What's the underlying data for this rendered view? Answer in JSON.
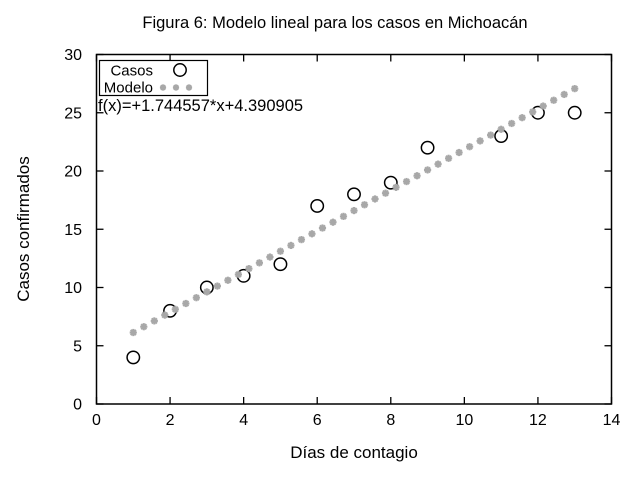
{
  "chart_data": {
    "type": "scatter",
    "title": "Figura 6: Modelo lineal para los casos en Michoacán",
    "xlabel": "Días de contagio",
    "ylabel": "Casos confirmados",
    "xlim": [
      0,
      14
    ],
    "ylim": [
      0,
      30
    ],
    "xticks": [
      0,
      2,
      4,
      6,
      8,
      10,
      12,
      14
    ],
    "yticks": [
      0,
      5,
      10,
      15,
      20,
      25,
      30
    ],
    "grid": false,
    "annotation": "f(x)=+1.744557*x+4.390905",
    "legend": {
      "position": "top-left",
      "entries": [
        {
          "label": "Casos",
          "marker": "open-circle"
        },
        {
          "label": "Modelo",
          "marker": "asterisk"
        }
      ]
    },
    "series": [
      {
        "name": "Casos",
        "type": "points",
        "marker": "open-circle",
        "color": "#000000",
        "points": [
          [
            1,
            4
          ],
          [
            2,
            8
          ],
          [
            3,
            10
          ],
          [
            4,
            11
          ],
          [
            5,
            12
          ],
          [
            6,
            17
          ],
          [
            7,
            18
          ],
          [
            8,
            19
          ],
          [
            9,
            22
          ],
          [
            11,
            23
          ],
          [
            12,
            25
          ],
          [
            13,
            25
          ]
        ]
      },
      {
        "name": "Modelo",
        "type": "function-points",
        "marker": "asterisk",
        "color": "#a8a8a8",
        "model": {
          "slope": 1.744557,
          "intercept": 4.390905,
          "x_start": 1,
          "x_end": 13,
          "samples": 43
        }
      }
    ],
    "colors": {
      "background": "#ffffff",
      "axis": "#000000",
      "casos_marker": "#000000",
      "modelo_marker": "#a8a8a8"
    }
  }
}
